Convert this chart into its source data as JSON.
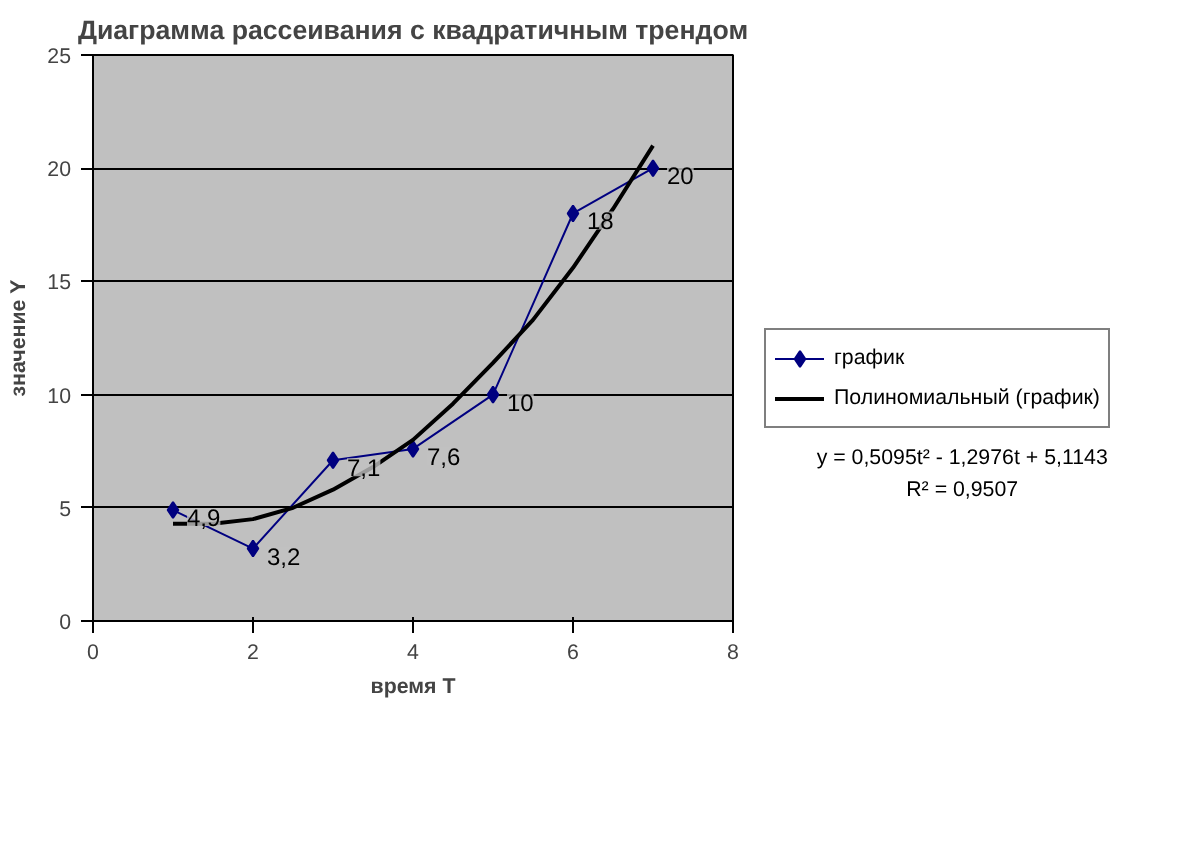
{
  "chart_data": {
    "type": "scatter",
    "title": "Диаграмма рассеивания с квадратичным трендом",
    "xlabel": "время T",
    "ylabel": "значение Y",
    "x": [
      1,
      2,
      3,
      4,
      5,
      6,
      7
    ],
    "series": [
      {
        "name": "график",
        "color": "#000080",
        "marker": "diamond",
        "line_style": "solid",
        "values": [
          4.9,
          3.2,
          7.1,
          7.6,
          10,
          18,
          20
        ],
        "value_labels": [
          "4,9",
          "3,2",
          "7,1",
          "7,6",
          "10",
          "18",
          "20"
        ]
      },
      {
        "name": "Полиномиальный (график)",
        "color": "#000000",
        "type": "line",
        "marker": "none",
        "line_style": "solid",
        "x": [
          1,
          1.5,
          2,
          2.5,
          3,
          3.5,
          4,
          4.5,
          5,
          5.5,
          6,
          6.5,
          7
        ],
        "values": [
          4.3,
          4.3,
          4.5,
          5.0,
          5.8,
          6.8,
          8.0,
          9.6,
          11.4,
          13.3,
          15.6,
          18.2,
          21.0
        ]
      }
    ],
    "xlim": [
      0,
      8
    ],
    "xticks": [
      0,
      2,
      4,
      6,
      8
    ],
    "ylim": [
      0,
      25
    ],
    "yticks": [
      0,
      5,
      10,
      15,
      20,
      25
    ],
    "grid": "y",
    "legend": "right",
    "annotations": [
      "y = 0,5095t² - 1,2976t + 5,1143",
      "R² = 0,9507"
    ]
  }
}
